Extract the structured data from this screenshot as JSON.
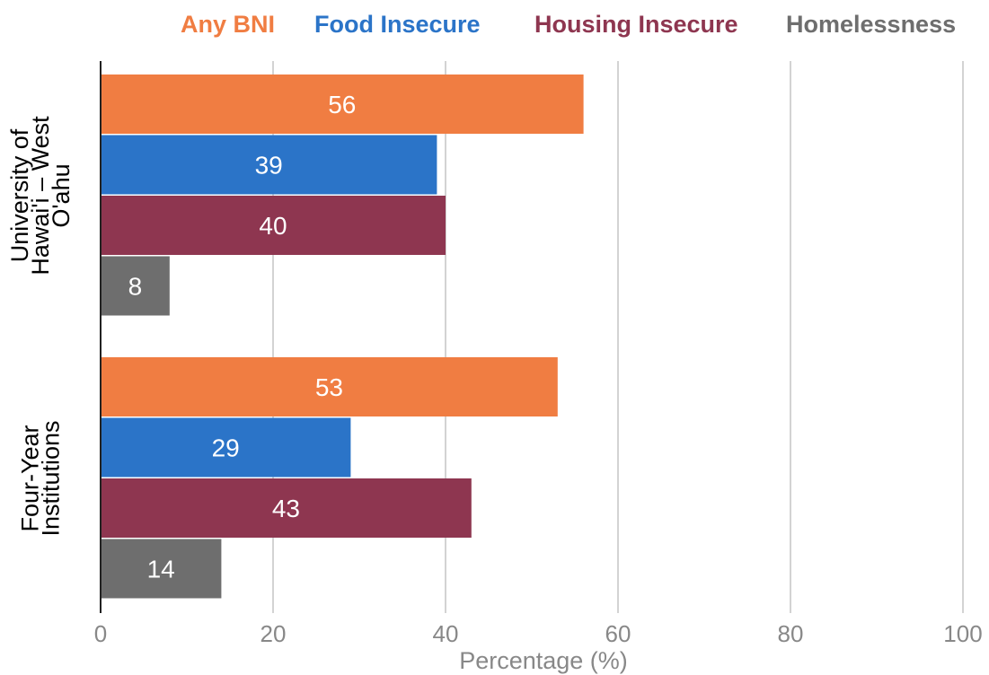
{
  "chart_data": {
    "type": "bar",
    "orientation": "horizontal",
    "title": "",
    "xlabel": "Percentage (%)",
    "ylabel": "",
    "xlim": [
      0,
      100
    ],
    "xticks": [
      "0",
      "20",
      "40",
      "60",
      "80",
      "100"
    ],
    "grid": "vertical",
    "legend_position": "top",
    "categories": [
      [
        "University of",
        "Hawai'i – West",
        "O'ahu"
      ],
      [
        "Four-Year",
        "Institutions"
      ]
    ],
    "series": [
      {
        "name": "Any BNI",
        "color": "#F07D42",
        "values": [
          56,
          53
        ]
      },
      {
        "name": "Food Insecure",
        "color": "#2B74C8",
        "values": [
          39,
          29
        ]
      },
      {
        "name": "Housing Insecure",
        "color": "#8E3650",
        "values": [
          40,
          43
        ]
      },
      {
        "name": "Homelessness",
        "color": "#6E6E6E",
        "values": [
          8,
          14
        ]
      }
    ]
  }
}
